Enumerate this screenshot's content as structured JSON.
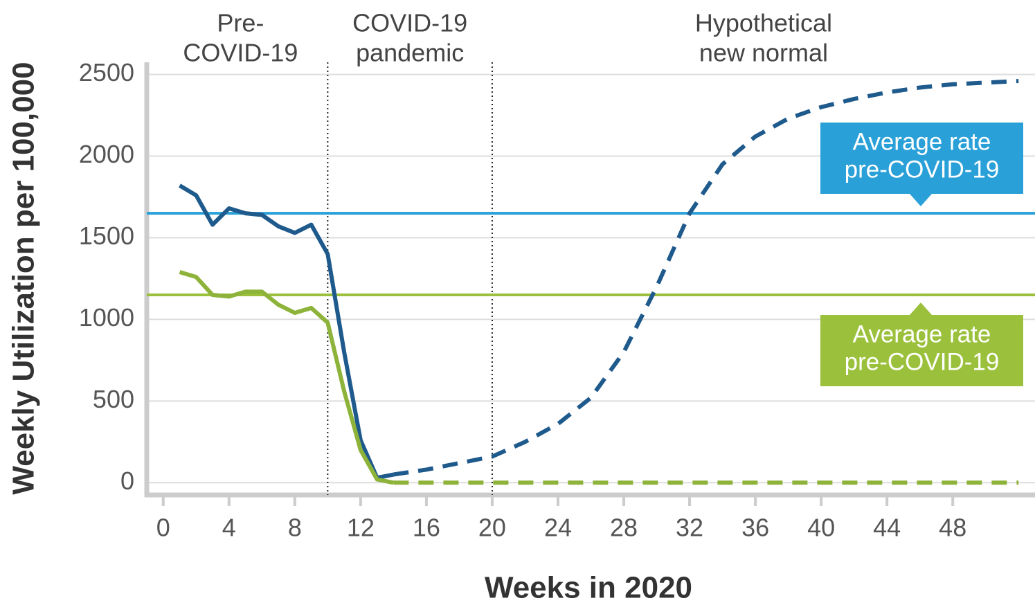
{
  "chart_data": {
    "type": "line",
    "xlabel": "Weeks in 2020",
    "ylabel": "Weekly Utilization per 100,000",
    "xlim": [
      -1,
      53
    ],
    "ylim": [
      -75,
      2600
    ],
    "xticks": [
      0,
      4,
      8,
      12,
      16,
      20,
      24,
      28,
      32,
      36,
      40,
      44,
      48
    ],
    "yticks": [
      0,
      500,
      1000,
      1500,
      2000,
      2500
    ],
    "grid": true,
    "series": [
      {
        "color": "#1f5a8c",
        "dashed": false,
        "x": [
          1,
          2,
          3,
          4,
          5,
          6,
          7,
          8,
          9,
          10,
          11,
          12,
          13,
          14
        ],
        "values": [
          1820,
          1760,
          1580,
          1680,
          1650,
          1640,
          1570,
          1530,
          1580,
          1400,
          800,
          260,
          30,
          50
        ]
      },
      {
        "color": "#1f5a8c",
        "dashed": true,
        "x": [
          14,
          16,
          18,
          20,
          22,
          24,
          26,
          28,
          30,
          32,
          34,
          36,
          38,
          40,
          42,
          44,
          46,
          48,
          50,
          52
        ],
        "values": [
          50,
          80,
          120,
          160,
          250,
          360,
          520,
          800,
          1200,
          1650,
          1950,
          2120,
          2230,
          2300,
          2350,
          2390,
          2420,
          2440,
          2450,
          2460
        ]
      },
      {
        "color": "#8db33a",
        "dashed": false,
        "x": [
          1,
          2,
          3,
          4,
          5,
          6,
          7,
          8,
          9,
          10,
          11,
          12,
          13,
          14
        ],
        "values": [
          1290,
          1260,
          1150,
          1140,
          1170,
          1170,
          1090,
          1040,
          1070,
          980,
          560,
          200,
          20,
          0
        ]
      },
      {
        "color": "#8db33a",
        "dashed": true,
        "x": [
          14,
          52
        ],
        "values": [
          0,
          0
        ]
      }
    ],
    "reference_lines": [
      {
        "value": 1650,
        "color": "#2aa0d8",
        "label": [
          "Average rate",
          "pre-COVID-19"
        ]
      },
      {
        "value": 1150,
        "color": "#9bc13c",
        "label": [
          "Average rate",
          "pre-COVID-19"
        ]
      }
    ],
    "vlines": [
      10,
      20
    ],
    "phases": [
      {
        "x": 4.7,
        "label": [
          "Pre-",
          "COVID-19"
        ]
      },
      {
        "x": 15,
        "label": [
          "COVID-19",
          "pandemic"
        ]
      },
      {
        "x": 36.5,
        "label": [
          "Hypothetical",
          "new normal"
        ]
      }
    ]
  }
}
